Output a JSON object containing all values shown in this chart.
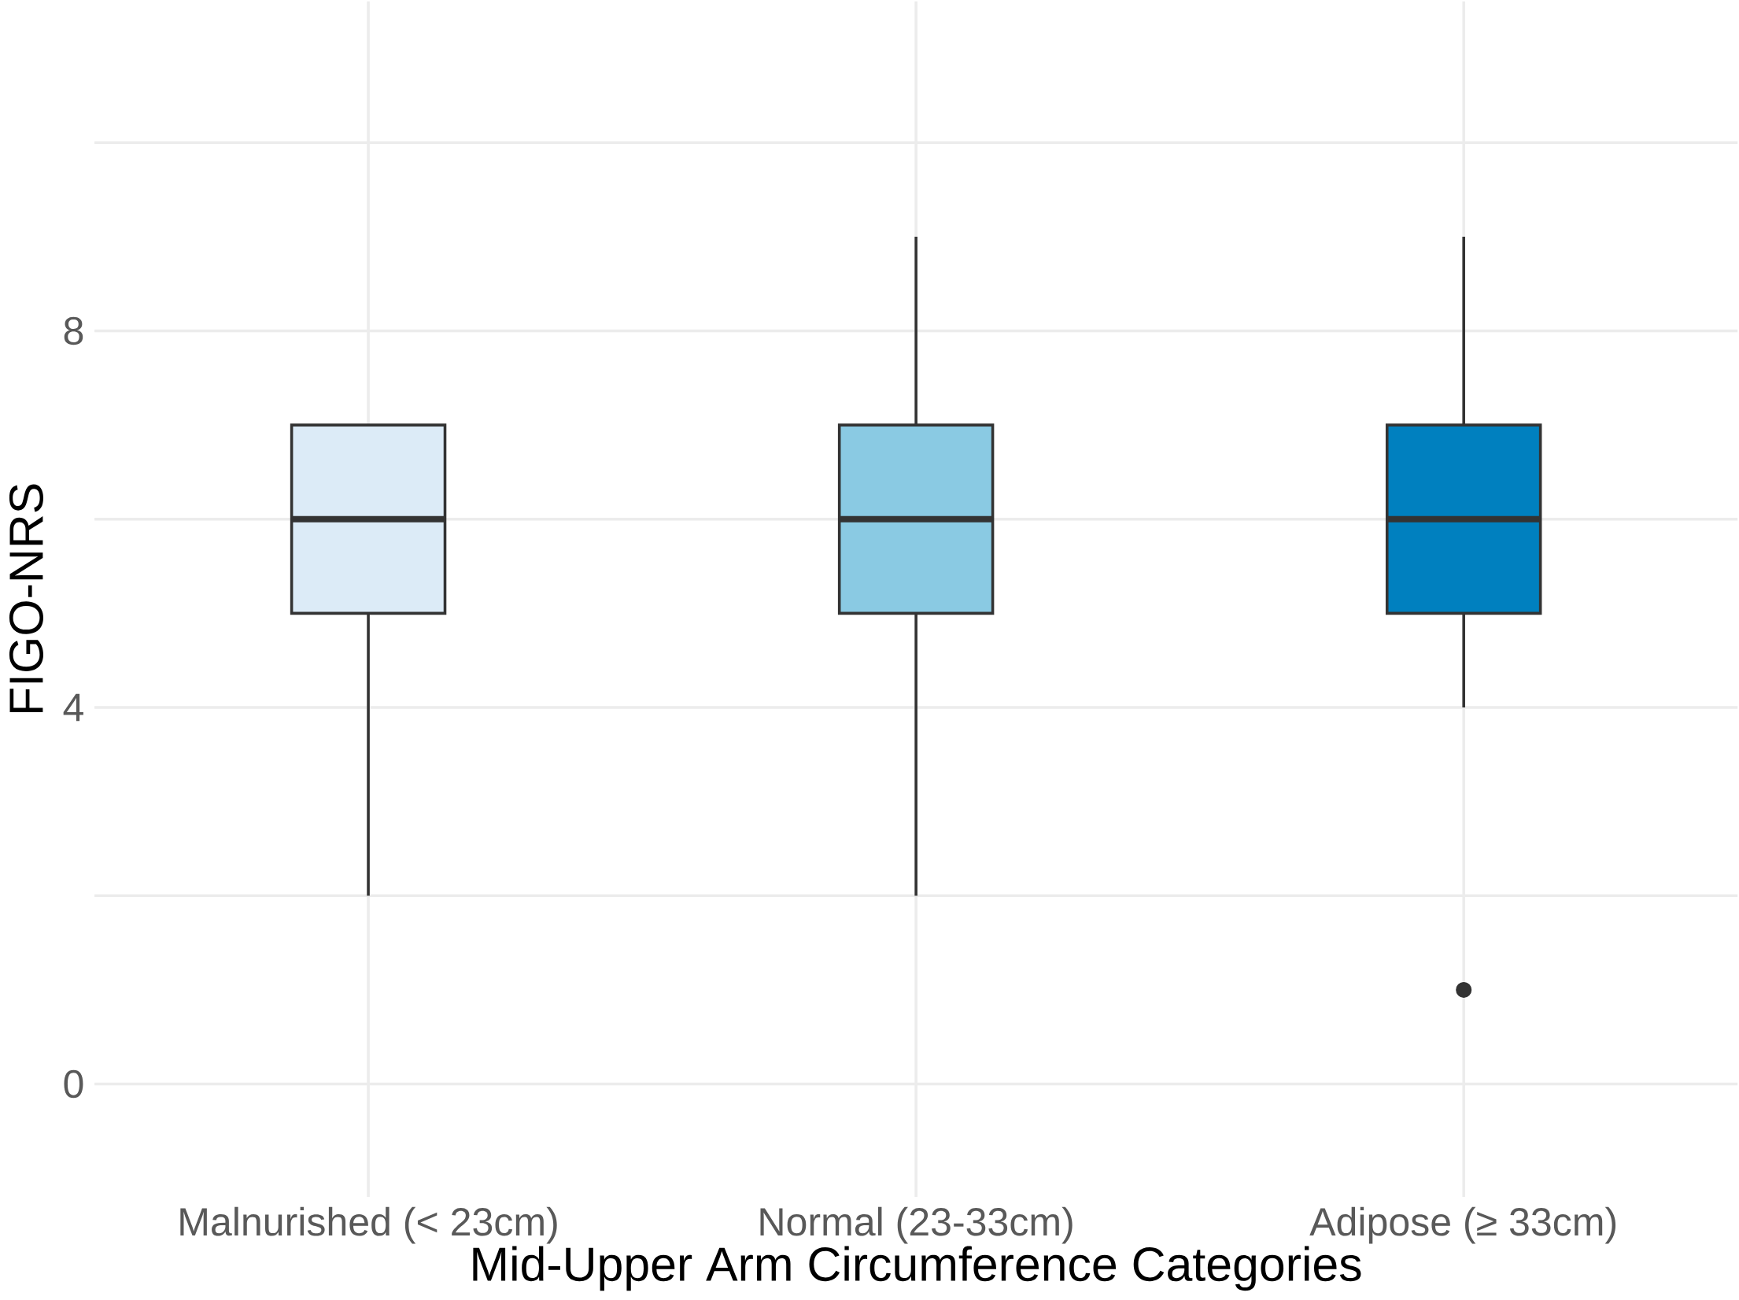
{
  "chart_data": {
    "type": "box",
    "xlabel": "Mid-Upper Arm Circumference Categories",
    "ylabel": "FIGO-NRS",
    "categories": [
      "Malnurished (< 23cm)",
      "Normal (23-33cm)",
      "Adipose (≥ 33cm)"
    ],
    "colors": [
      "#dcebf7",
      "#8acae3",
      "#0080bf"
    ],
    "boxes": [
      {
        "low": 2,
        "q1": 5,
        "median": 6,
        "q3": 7,
        "high": 7
      },
      {
        "low": 2,
        "q1": 5,
        "median": 6,
        "q3": 7,
        "high": 9
      },
      {
        "low": 4,
        "q1": 5,
        "median": 6,
        "q3": 7,
        "high": 9,
        "outliers": [
          1
        ]
      }
    ],
    "ylim": [
      -1.2,
      11.5
    ],
    "yticks": [
      0,
      {
        "value": 2,
        "label": null
      },
      4,
      {
        "value": 6,
        "label": null
      },
      8,
      {
        "value": 10,
        "label": null
      }
    ],
    "grid": true
  }
}
